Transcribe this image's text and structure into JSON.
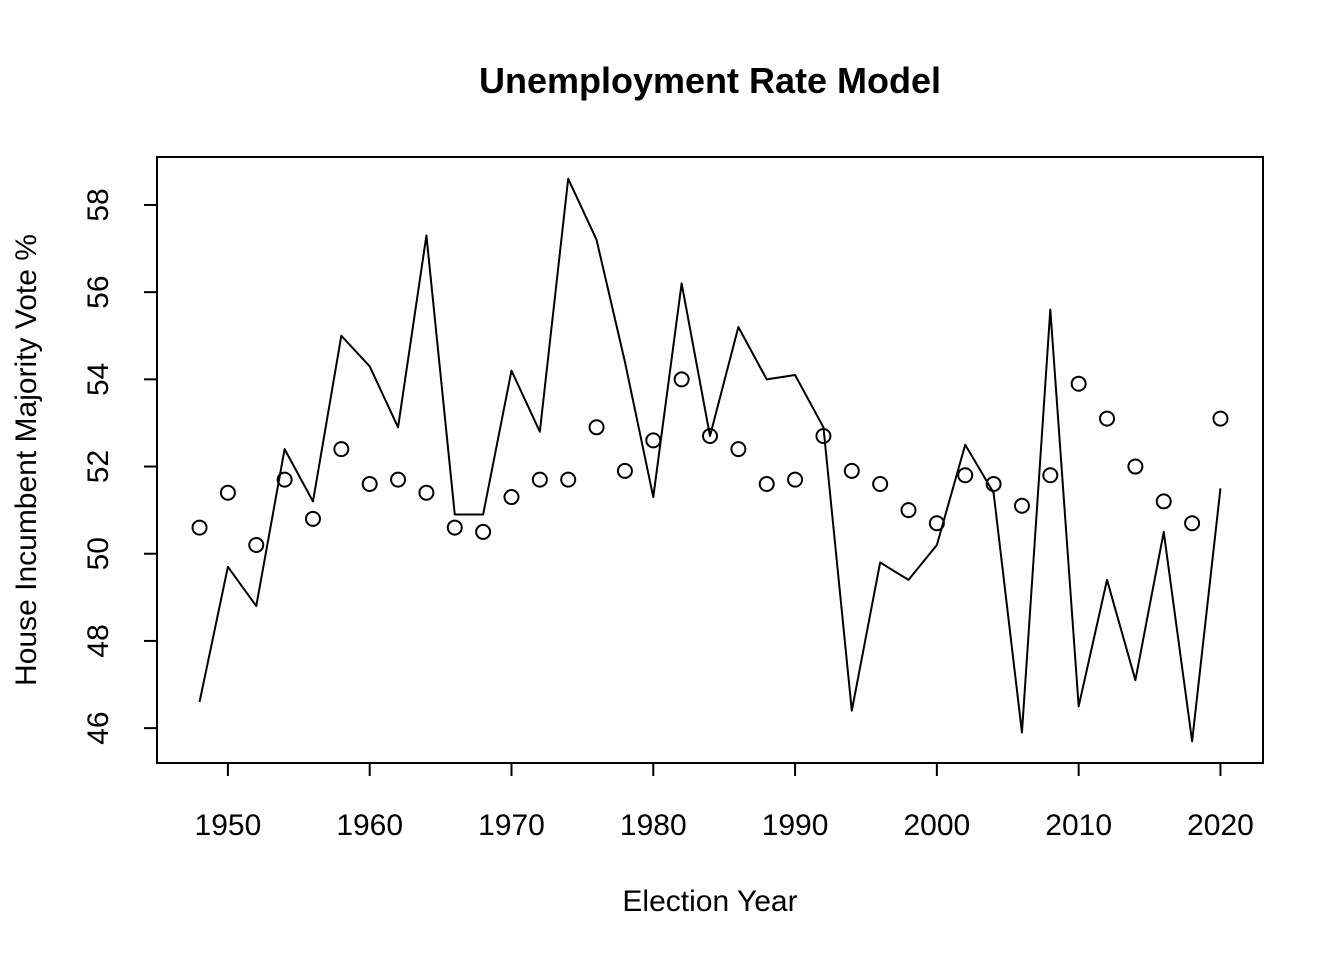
{
  "chart_data": {
    "type": "line",
    "title": "Unemployment Rate Model",
    "xlabel": "Election Year",
    "ylabel": "House Incumbent Majority Vote %",
    "xlim": [
      1945,
      2023
    ],
    "ylim": [
      45.2,
      59.1
    ],
    "xticks": [
      1950,
      1960,
      1970,
      1980,
      1990,
      2000,
      2010,
      2020
    ],
    "yticks": [
      46,
      48,
      50,
      52,
      54,
      56,
      58
    ],
    "grid": false,
    "legend": "none",
    "x": [
      1948,
      1950,
      1952,
      1954,
      1956,
      1958,
      1960,
      1962,
      1964,
      1966,
      1968,
      1970,
      1972,
      1974,
      1976,
      1978,
      1980,
      1982,
      1984,
      1986,
      1988,
      1990,
      1992,
      1994,
      1996,
      1998,
      2000,
      2002,
      2004,
      2006,
      2008,
      2010,
      2012,
      2014,
      2016,
      2018,
      2020
    ],
    "series": [
      {
        "style": "line",
        "values": [
          46.6,
          49.7,
          48.8,
          52.4,
          51.2,
          55.0,
          54.3,
          52.9,
          57.3,
          50.9,
          50.9,
          54.2,
          52.8,
          58.6,
          57.2,
          54.4,
          51.3,
          56.2,
          52.7,
          55.2,
          54.0,
          54.1,
          52.9,
          46.4,
          49.8,
          49.4,
          50.2,
          52.5,
          51.4,
          45.9,
          55.6,
          46.5,
          49.4,
          47.1,
          50.5,
          45.7,
          51.5
        ]
      },
      {
        "style": "points",
        "values": [
          50.6,
          51.4,
          50.2,
          51.7,
          50.8,
          52.4,
          51.6,
          51.7,
          51.4,
          50.6,
          50.5,
          51.3,
          51.7,
          51.7,
          52.9,
          51.9,
          52.6,
          54.0,
          52.7,
          52.4,
          51.6,
          51.7,
          52.7,
          51.9,
          51.6,
          51.0,
          50.7,
          51.8,
          51.6,
          51.1,
          51.8,
          53.9,
          53.1,
          52.0,
          51.2,
          50.7,
          53.1
        ]
      }
    ]
  }
}
